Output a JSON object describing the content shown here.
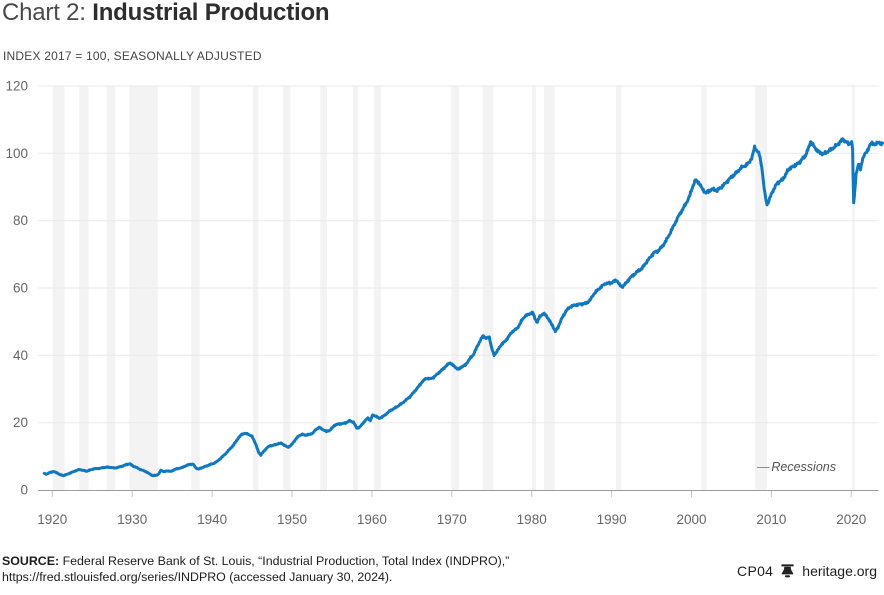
{
  "header": {
    "title_prefix": "Chart 2: ",
    "title": "Industrial Production",
    "subtitle": "INDEX 2017 = 100, SEASONALLY ADJUSTED"
  },
  "legend": {
    "dash": "—",
    "label": "Recessions"
  },
  "footer": {
    "source_label": "SOURCE:",
    "source_text": " Federal Reserve Bank of St. Louis, “Industrial Production, Total Index (INDPRO),”",
    "source_line2": "https://fred.stlouisfed.org/series/INDPRO (accessed January 30, 2024).",
    "chart_code": "CP04",
    "bell_icon": "liberty-bell",
    "brand": "heritage.org"
  },
  "chart_data": {
    "type": "line",
    "title": "Industrial Production",
    "units_note": "Index 2017 = 100, seasonally adjusted",
    "series_name": "Industrial Production, Total Index (INDPRO)",
    "legend_entries": [
      "Recessions"
    ],
    "x_ticks": [
      1920,
      1930,
      1940,
      1950,
      1960,
      1970,
      1980,
      1990,
      2000,
      2010,
      2020
    ],
    "y_ticks": [
      0,
      20,
      40,
      60,
      80,
      100,
      120
    ],
    "xlim": [
      1918.2,
      2024.1
    ],
    "ylim": [
      0,
      120
    ],
    "grid": "horizontal",
    "line_color": "#1178be",
    "recession_color": "#f3f3f3",
    "recessions": [
      [
        1920.04,
        1921.54
      ],
      [
        1923.38,
        1924.54
      ],
      [
        1926.79,
        1927.88
      ],
      [
        1929.63,
        1933.21
      ],
      [
        1937.38,
        1938.46
      ],
      [
        1945.13,
        1945.79
      ],
      [
        1948.88,
        1949.79
      ],
      [
        1953.54,
        1954.38
      ],
      [
        1957.63,
        1958.29
      ],
      [
        1960.29,
        1961.13
      ],
      [
        1969.96,
        1970.88
      ],
      [
        1973.88,
        1975.21
      ],
      [
        1980.04,
        1980.54
      ],
      [
        1981.54,
        1982.88
      ],
      [
        1990.54,
        1991.21
      ],
      [
        2001.21,
        2001.88
      ],
      [
        2007.96,
        2009.46
      ],
      [
        2020.12,
        2020.38
      ]
    ],
    "points_format": [
      "year",
      "index_value"
    ],
    "points": [
      [
        1919.0,
        4.9
      ],
      [
        1919.3,
        4.7
      ],
      [
        1919.7,
        5.2
      ],
      [
        1920.1,
        5.5
      ],
      [
        1920.6,
        5.1
      ],
      [
        1921.0,
        4.5
      ],
      [
        1921.4,
        4.3
      ],
      [
        1921.9,
        4.7
      ],
      [
        1922.4,
        5.2
      ],
      [
        1922.9,
        5.7
      ],
      [
        1923.4,
        6.1
      ],
      [
        1923.9,
        5.8
      ],
      [
        1924.3,
        5.6
      ],
      [
        1924.8,
        6.0
      ],
      [
        1925.2,
        6.3
      ],
      [
        1925.8,
        6.4
      ],
      [
        1926.3,
        6.6
      ],
      [
        1926.8,
        6.8
      ],
      [
        1927.3,
        6.7
      ],
      [
        1927.8,
        6.5
      ],
      [
        1928.3,
        6.8
      ],
      [
        1928.8,
        7.1
      ],
      [
        1929.2,
        7.5
      ],
      [
        1929.7,
        7.8
      ],
      [
        1930.1,
        7.1
      ],
      [
        1930.6,
        6.6
      ],
      [
        1931.1,
        6.0
      ],
      [
        1931.6,
        5.6
      ],
      [
        1932.1,
        4.9
      ],
      [
        1932.6,
        4.2
      ],
      [
        1933.0,
        4.4
      ],
      [
        1933.3,
        4.7
      ],
      [
        1933.6,
        5.9
      ],
      [
        1934.0,
        5.4
      ],
      [
        1934.4,
        5.7
      ],
      [
        1934.9,
        5.5
      ],
      [
        1935.3,
        6.1
      ],
      [
        1935.8,
        6.4
      ],
      [
        1936.3,
        6.7
      ],
      [
        1936.8,
        7.3
      ],
      [
        1937.2,
        7.6
      ],
      [
        1937.6,
        7.7
      ],
      [
        1938.0,
        6.5
      ],
      [
        1938.3,
        6.2
      ],
      [
        1938.8,
        6.7
      ],
      [
        1939.3,
        7.1
      ],
      [
        1939.8,
        7.6
      ],
      [
        1940.2,
        7.9
      ],
      [
        1940.7,
        8.6
      ],
      [
        1941.2,
        9.7
      ],
      [
        1941.7,
        10.8
      ],
      [
        1942.2,
        12.1
      ],
      [
        1942.7,
        13.4
      ],
      [
        1943.2,
        15.2
      ],
      [
        1943.7,
        16.5
      ],
      [
        1944.0,
        16.8
      ],
      [
        1944.5,
        16.6
      ],
      [
        1945.0,
        15.9
      ],
      [
        1945.4,
        14.0
      ],
      [
        1945.8,
        11.3
      ],
      [
        1946.1,
        10.4
      ],
      [
        1946.4,
        11.3
      ],
      [
        1946.8,
        12.4
      ],
      [
        1947.2,
        13.1
      ],
      [
        1947.7,
        13.3
      ],
      [
        1948.2,
        13.7
      ],
      [
        1948.7,
        13.9
      ],
      [
        1949.1,
        13.2
      ],
      [
        1949.5,
        12.7
      ],
      [
        1949.9,
        13.3
      ],
      [
        1950.3,
        14.6
      ],
      [
        1950.8,
        16.0
      ],
      [
        1951.2,
        16.5
      ],
      [
        1951.7,
        16.3
      ],
      [
        1952.2,
        16.5
      ],
      [
        1952.6,
        16.9
      ],
      [
        1953.0,
        18.0
      ],
      [
        1953.4,
        18.6
      ],
      [
        1953.9,
        17.9
      ],
      [
        1954.3,
        17.4
      ],
      [
        1954.8,
        17.8
      ],
      [
        1955.3,
        19.2
      ],
      [
        1955.8,
        19.6
      ],
      [
        1956.3,
        19.7
      ],
      [
        1956.8,
        20.0
      ],
      [
        1957.2,
        20.6
      ],
      [
        1957.7,
        20.1
      ],
      [
        1958.1,
        18.4
      ],
      [
        1958.5,
        18.7
      ],
      [
        1959.0,
        20.2
      ],
      [
        1959.5,
        21.4
      ],
      [
        1959.8,
        20.6
      ],
      [
        1960.1,
        22.3
      ],
      [
        1960.5,
        21.9
      ],
      [
        1960.9,
        21.3
      ],
      [
        1961.3,
        21.7
      ],
      [
        1961.8,
        22.6
      ],
      [
        1962.3,
        23.6
      ],
      [
        1962.8,
        24.2
      ],
      [
        1963.3,
        25.0
      ],
      [
        1963.8,
        25.8
      ],
      [
        1964.3,
        26.8
      ],
      [
        1964.8,
        27.8
      ],
      [
        1965.3,
        29.2
      ],
      [
        1965.8,
        30.6
      ],
      [
        1966.3,
        32.2
      ],
      [
        1966.8,
        33.2
      ],
      [
        1967.3,
        33.0
      ],
      [
        1967.8,
        33.6
      ],
      [
        1968.3,
        34.7
      ],
      [
        1968.8,
        35.7
      ],
      [
        1969.3,
        36.9
      ],
      [
        1969.8,
        37.8
      ],
      [
        1970.2,
        36.9
      ],
      [
        1970.6,
        36.2
      ],
      [
        1970.9,
        35.8
      ],
      [
        1971.2,
        36.6
      ],
      [
        1971.7,
        37.1
      ],
      [
        1972.2,
        38.8
      ],
      [
        1972.7,
        40.2
      ],
      [
        1973.2,
        42.7
      ],
      [
        1973.6,
        44.6
      ],
      [
        1973.9,
        45.8
      ],
      [
        1974.3,
        45.1
      ],
      [
        1974.7,
        45.3
      ],
      [
        1975.0,
        42.0
      ],
      [
        1975.3,
        40.1
      ],
      [
        1975.7,
        41.3
      ],
      [
        1976.2,
        43.2
      ],
      [
        1976.7,
        44.2
      ],
      [
        1977.2,
        45.9
      ],
      [
        1977.7,
        47.3
      ],
      [
        1978.2,
        48.0
      ],
      [
        1978.7,
        50.1
      ],
      [
        1979.2,
        51.8
      ],
      [
        1979.7,
        52.2
      ],
      [
        1980.1,
        52.8
      ],
      [
        1980.4,
        51.0
      ],
      [
        1980.7,
        49.8
      ],
      [
        1981.0,
        51.5
      ],
      [
        1981.4,
        52.3
      ],
      [
        1981.8,
        52.0
      ],
      [
        1982.2,
        50.3
      ],
      [
        1982.6,
        48.9
      ],
      [
        1982.95,
        47.0
      ],
      [
        1983.3,
        48.4
      ],
      [
        1983.8,
        51.1
      ],
      [
        1984.3,
        53.2
      ],
      [
        1984.8,
        54.4
      ],
      [
        1985.3,
        54.8
      ],
      [
        1985.8,
        55.1
      ],
      [
        1986.3,
        55.3
      ],
      [
        1986.8,
        55.4
      ],
      [
        1987.3,
        56.4
      ],
      [
        1987.8,
        58.3
      ],
      [
        1988.3,
        59.5
      ],
      [
        1988.8,
        60.6
      ],
      [
        1989.3,
        61.4
      ],
      [
        1989.8,
        61.4
      ],
      [
        1990.3,
        62.0
      ],
      [
        1990.7,
        62.2
      ],
      [
        1991.0,
        60.9
      ],
      [
        1991.3,
        60.3
      ],
      [
        1991.8,
        61.4
      ],
      [
        1992.3,
        63.0
      ],
      [
        1992.8,
        64.0
      ],
      [
        1993.3,
        65.0
      ],
      [
        1993.8,
        65.8
      ],
      [
        1994.3,
        67.5
      ],
      [
        1994.8,
        69.0
      ],
      [
        1995.3,
        70.5
      ],
      [
        1995.8,
        71.0
      ],
      [
        1996.3,
        72.2
      ],
      [
        1996.8,
        74.0
      ],
      [
        1997.3,
        76.2
      ],
      [
        1997.8,
        78.6
      ],
      [
        1998.3,
        81.0
      ],
      [
        1998.8,
        83.0
      ],
      [
        1999.3,
        85.0
      ],
      [
        1999.8,
        87.5
      ],
      [
        2000.2,
        90.5
      ],
      [
        2000.5,
        92.0
      ],
      [
        2000.9,
        91.4
      ],
      [
        2001.3,
        89.6
      ],
      [
        2001.8,
        88.2
      ],
      [
        2002.2,
        88.9
      ],
      [
        2002.7,
        89.3
      ],
      [
        2003.2,
        89.0
      ],
      [
        2003.7,
        89.9
      ],
      [
        2004.2,
        91.0
      ],
      [
        2004.7,
        92.3
      ],
      [
        2005.2,
        93.4
      ],
      [
        2005.7,
        94.4
      ],
      [
        2006.2,
        95.7
      ],
      [
        2006.7,
        96.3
      ],
      [
        2007.2,
        97.2
      ],
      [
        2007.6,
        99.0
      ],
      [
        2007.9,
        101.8
      ],
      [
        2008.2,
        100.8
      ],
      [
        2008.5,
        99.6
      ],
      [
        2008.8,
        96.0
      ],
      [
        2009.0,
        91.5
      ],
      [
        2009.2,
        87.6
      ],
      [
        2009.45,
        84.8
      ],
      [
        2009.7,
        86.0
      ],
      [
        2009.9,
        87.3
      ],
      [
        2010.2,
        88.9
      ],
      [
        2010.5,
        90.3
      ],
      [
        2010.8,
        91.2
      ],
      [
        2011.1,
        91.8
      ],
      [
        2011.4,
        92.3
      ],
      [
        2011.7,
        93.3
      ],
      [
        2012.0,
        94.7
      ],
      [
        2012.3,
        95.6
      ],
      [
        2012.6,
        95.9
      ],
      [
        2012.9,
        96.4
      ],
      [
        2013.2,
        96.8
      ],
      [
        2013.5,
        97.3
      ],
      [
        2013.8,
        98.2
      ],
      [
        2014.1,
        98.8
      ],
      [
        2014.4,
        100.1
      ],
      [
        2014.7,
        101.9
      ],
      [
        2014.92,
        103.6
      ],
      [
        2015.2,
        102.5
      ],
      [
        2015.5,
        101.5
      ],
      [
        2015.8,
        100.7
      ],
      [
        2016.1,
        100.2
      ],
      [
        2016.5,
        99.8
      ],
      [
        2016.9,
        100.3
      ],
      [
        2017.3,
        100.9
      ],
      [
        2017.7,
        101.5
      ],
      [
        2017.95,
        102.0
      ],
      [
        2018.3,
        102.6
      ],
      [
        2018.6,
        103.4
      ],
      [
        2018.9,
        104.2
      ],
      [
        2019.2,
        103.6
      ],
      [
        2019.5,
        103.1
      ],
      [
        2019.8,
        102.9
      ],
      [
        2020.05,
        103.2
      ],
      [
        2020.16,
        101.0
      ],
      [
        2020.3,
        85.0
      ],
      [
        2020.45,
        89.5
      ],
      [
        2020.6,
        93.8
      ],
      [
        2020.8,
        95.8
      ],
      [
        2021.0,
        96.8
      ],
      [
        2021.15,
        95.2
      ],
      [
        2021.35,
        97.9
      ],
      [
        2021.6,
        99.2
      ],
      [
        2021.85,
        100.3
      ],
      [
        2022.1,
        101.2
      ],
      [
        2022.35,
        102.4
      ],
      [
        2022.6,
        103.2
      ],
      [
        2022.8,
        102.9
      ],
      [
        2023.0,
        102.5
      ],
      [
        2023.2,
        102.9
      ],
      [
        2023.4,
        103.3
      ],
      [
        2023.6,
        103.0
      ],
      [
        2023.75,
        102.7
      ],
      [
        2023.92,
        103.0
      ]
    ]
  }
}
